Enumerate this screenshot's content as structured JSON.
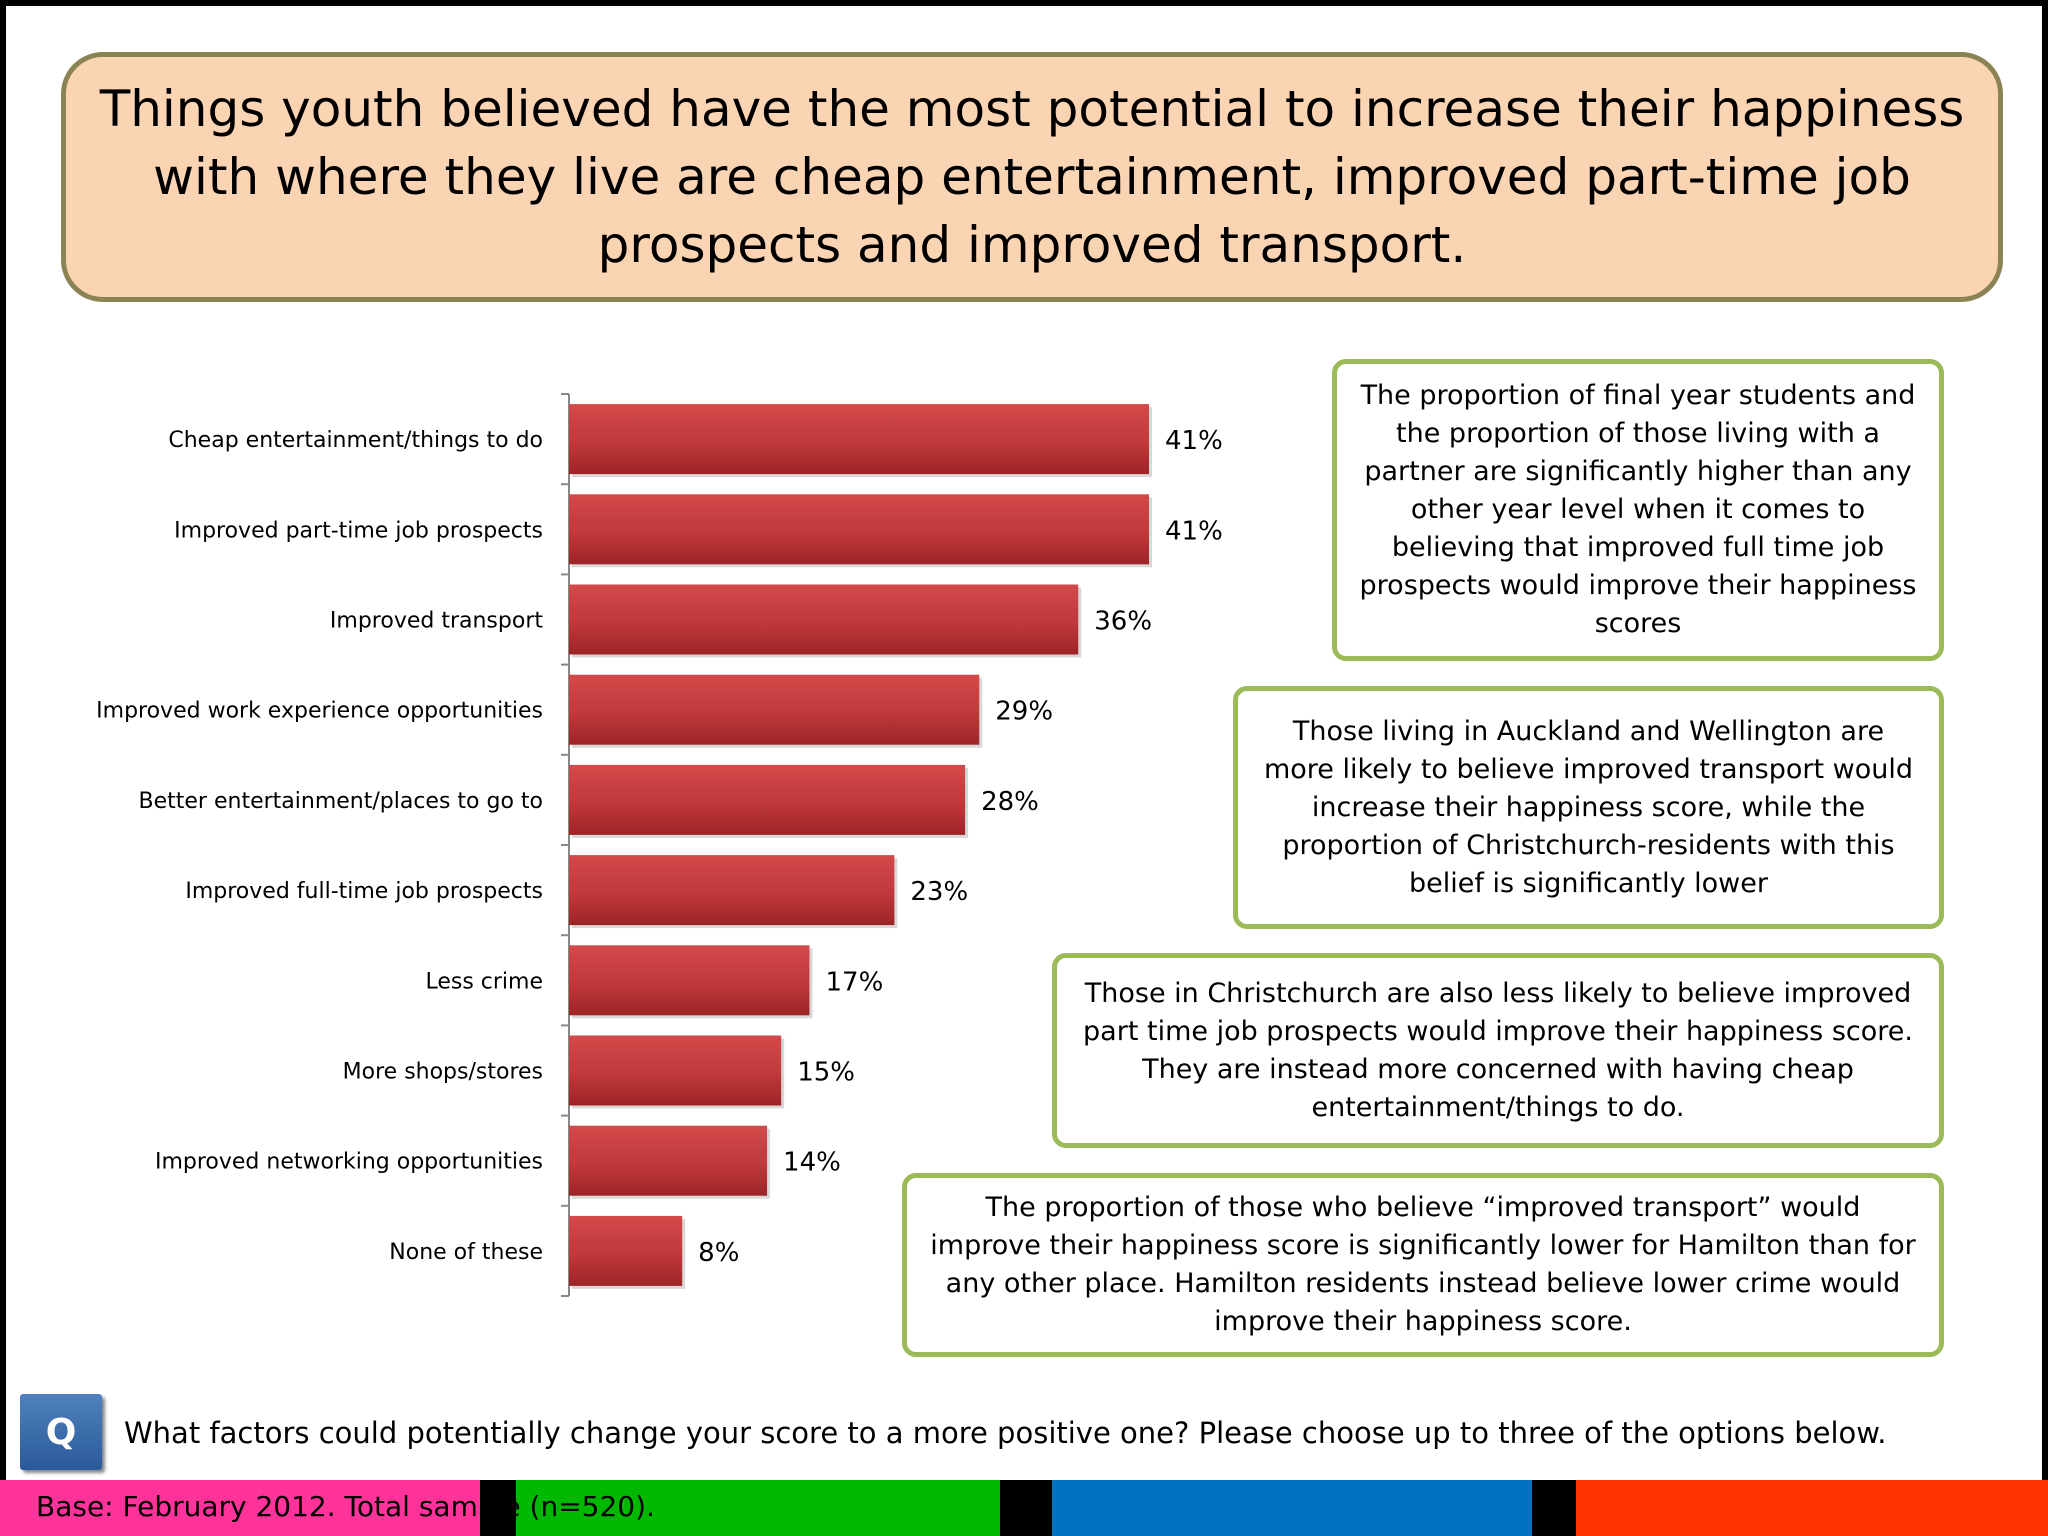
{
  "headline": "Things youth believed have the most potential to increase their happiness with where they live are cheap entertainment, improved part-time job prospects and improved transport.",
  "chart_data": {
    "type": "bar",
    "orientation": "horizontal",
    "categories": [
      "Cheap entertainment/things to do",
      "Improved part-time job prospects",
      "Improved transport",
      "Improved work experience opportunities",
      "Better entertainment/places to go to",
      "Improved full-time job prospects",
      "Less crime",
      "More shops/stores",
      "Improved networking opportunities",
      "None of these"
    ],
    "values": [
      41,
      41,
      36,
      29,
      28,
      23,
      17,
      15,
      14,
      8
    ],
    "value_labels": [
      "41%",
      "41%",
      "36%",
      "29%",
      "28%",
      "23%",
      "17%",
      "15%",
      "14%",
      "8%"
    ],
    "unit": "%",
    "xlim": [
      0,
      45
    ],
    "bar_color": "#c0393b",
    "grid": false
  },
  "notes": [
    "The proportion of final year students and the proportion of those living with a partner are significantly higher than any other year level when it comes to believing that improved full time job prospects would improve their happiness scores",
    "Those living in Auckland and Wellington are more likely to believe improved transport would increase their happiness score, while the proportion of Christchurch-residents with this belief is significantly lower",
    "Those in Christchurch are also less likely to believe improved part time job prospects would improve their happiness score. They are instead more concerned with having cheap entertainment/things to do.",
    "The proportion of those who believe “improved transport” would improve their happiness score is significantly lower for Hamilton than for any other place. Hamilton residents instead believe lower crime would improve their happiness score."
  ],
  "question_icon": "Q",
  "question": "What factors could potentially change your score to a more positive one? Please choose up to three of the options below.",
  "base_text": "Base: February 2012.  Total sample (n=520).",
  "colors": {
    "headline_bg": "#fbd4b4",
    "headline_border": "#8a8455",
    "note_border": "#9bbb59",
    "footer_pink": "#ff3399",
    "footer_green": "#00b800",
    "footer_blue": "#0070c0",
    "footer_orange": "#ff3300"
  }
}
